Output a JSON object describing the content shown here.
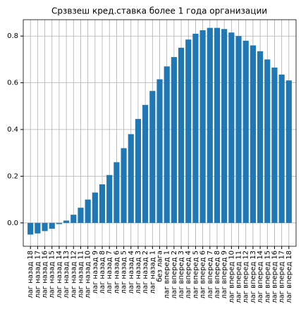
{
  "chart_data": {
    "type": "bar",
    "title": "Срзвзеш кред.ставка более 1 года организации",
    "categories": [
      "лаг назад 18",
      "лаг назад 17",
      "лаг назад 16",
      "лаг назад 15",
      "лаг назад 14",
      "лаг назад 13",
      "лаг назад 12",
      "лаг назад 11",
      "лаг назад 10",
      "лаг назад 9",
      "лаг назад 8",
      "лаг назад 7",
      "лаг назад 6",
      "лаг назад 5",
      "лаг назад 4",
      "лаг назад 3",
      "лаг назад 2",
      "лаг назад 1",
      "без лага",
      "лаг вперед 1",
      "лаг вперед 2",
      "лаг вперед 3",
      "лаг вперед 4",
      "лаг вперед 5",
      "лаг вперед 6",
      "лаг вперед 7",
      "лаг вперед 8",
      "лаг вперед 9",
      "лаг вперед 10",
      "лаг вперед 11",
      "лаг вперед 12",
      "лаг вперед 13",
      "лаг вперед 14",
      "лаг вперед 15",
      "лаг вперед 16",
      "лаг вперед 17",
      "лаг вперед 18"
    ],
    "values": [
      -0.05,
      -0.045,
      -0.035,
      -0.025,
      -0.005,
      0.01,
      0.035,
      0.065,
      0.1,
      0.13,
      0.165,
      0.205,
      0.26,
      0.32,
      0.38,
      0.445,
      0.505,
      0.565,
      0.615,
      0.67,
      0.71,
      0.75,
      0.785,
      0.81,
      0.825,
      0.835,
      0.835,
      0.83,
      0.815,
      0.8,
      0.78,
      0.76,
      0.735,
      0.7,
      0.665,
      0.635,
      0.61
    ],
    "color": "#1f77b4",
    "ylim": [
      -0.1,
      0.87
    ],
    "yticks": [
      {
        "value": 0,
        "label": "0.0"
      },
      0.2,
      0.4,
      0.6,
      0.8
    ],
    "grid": true
  }
}
